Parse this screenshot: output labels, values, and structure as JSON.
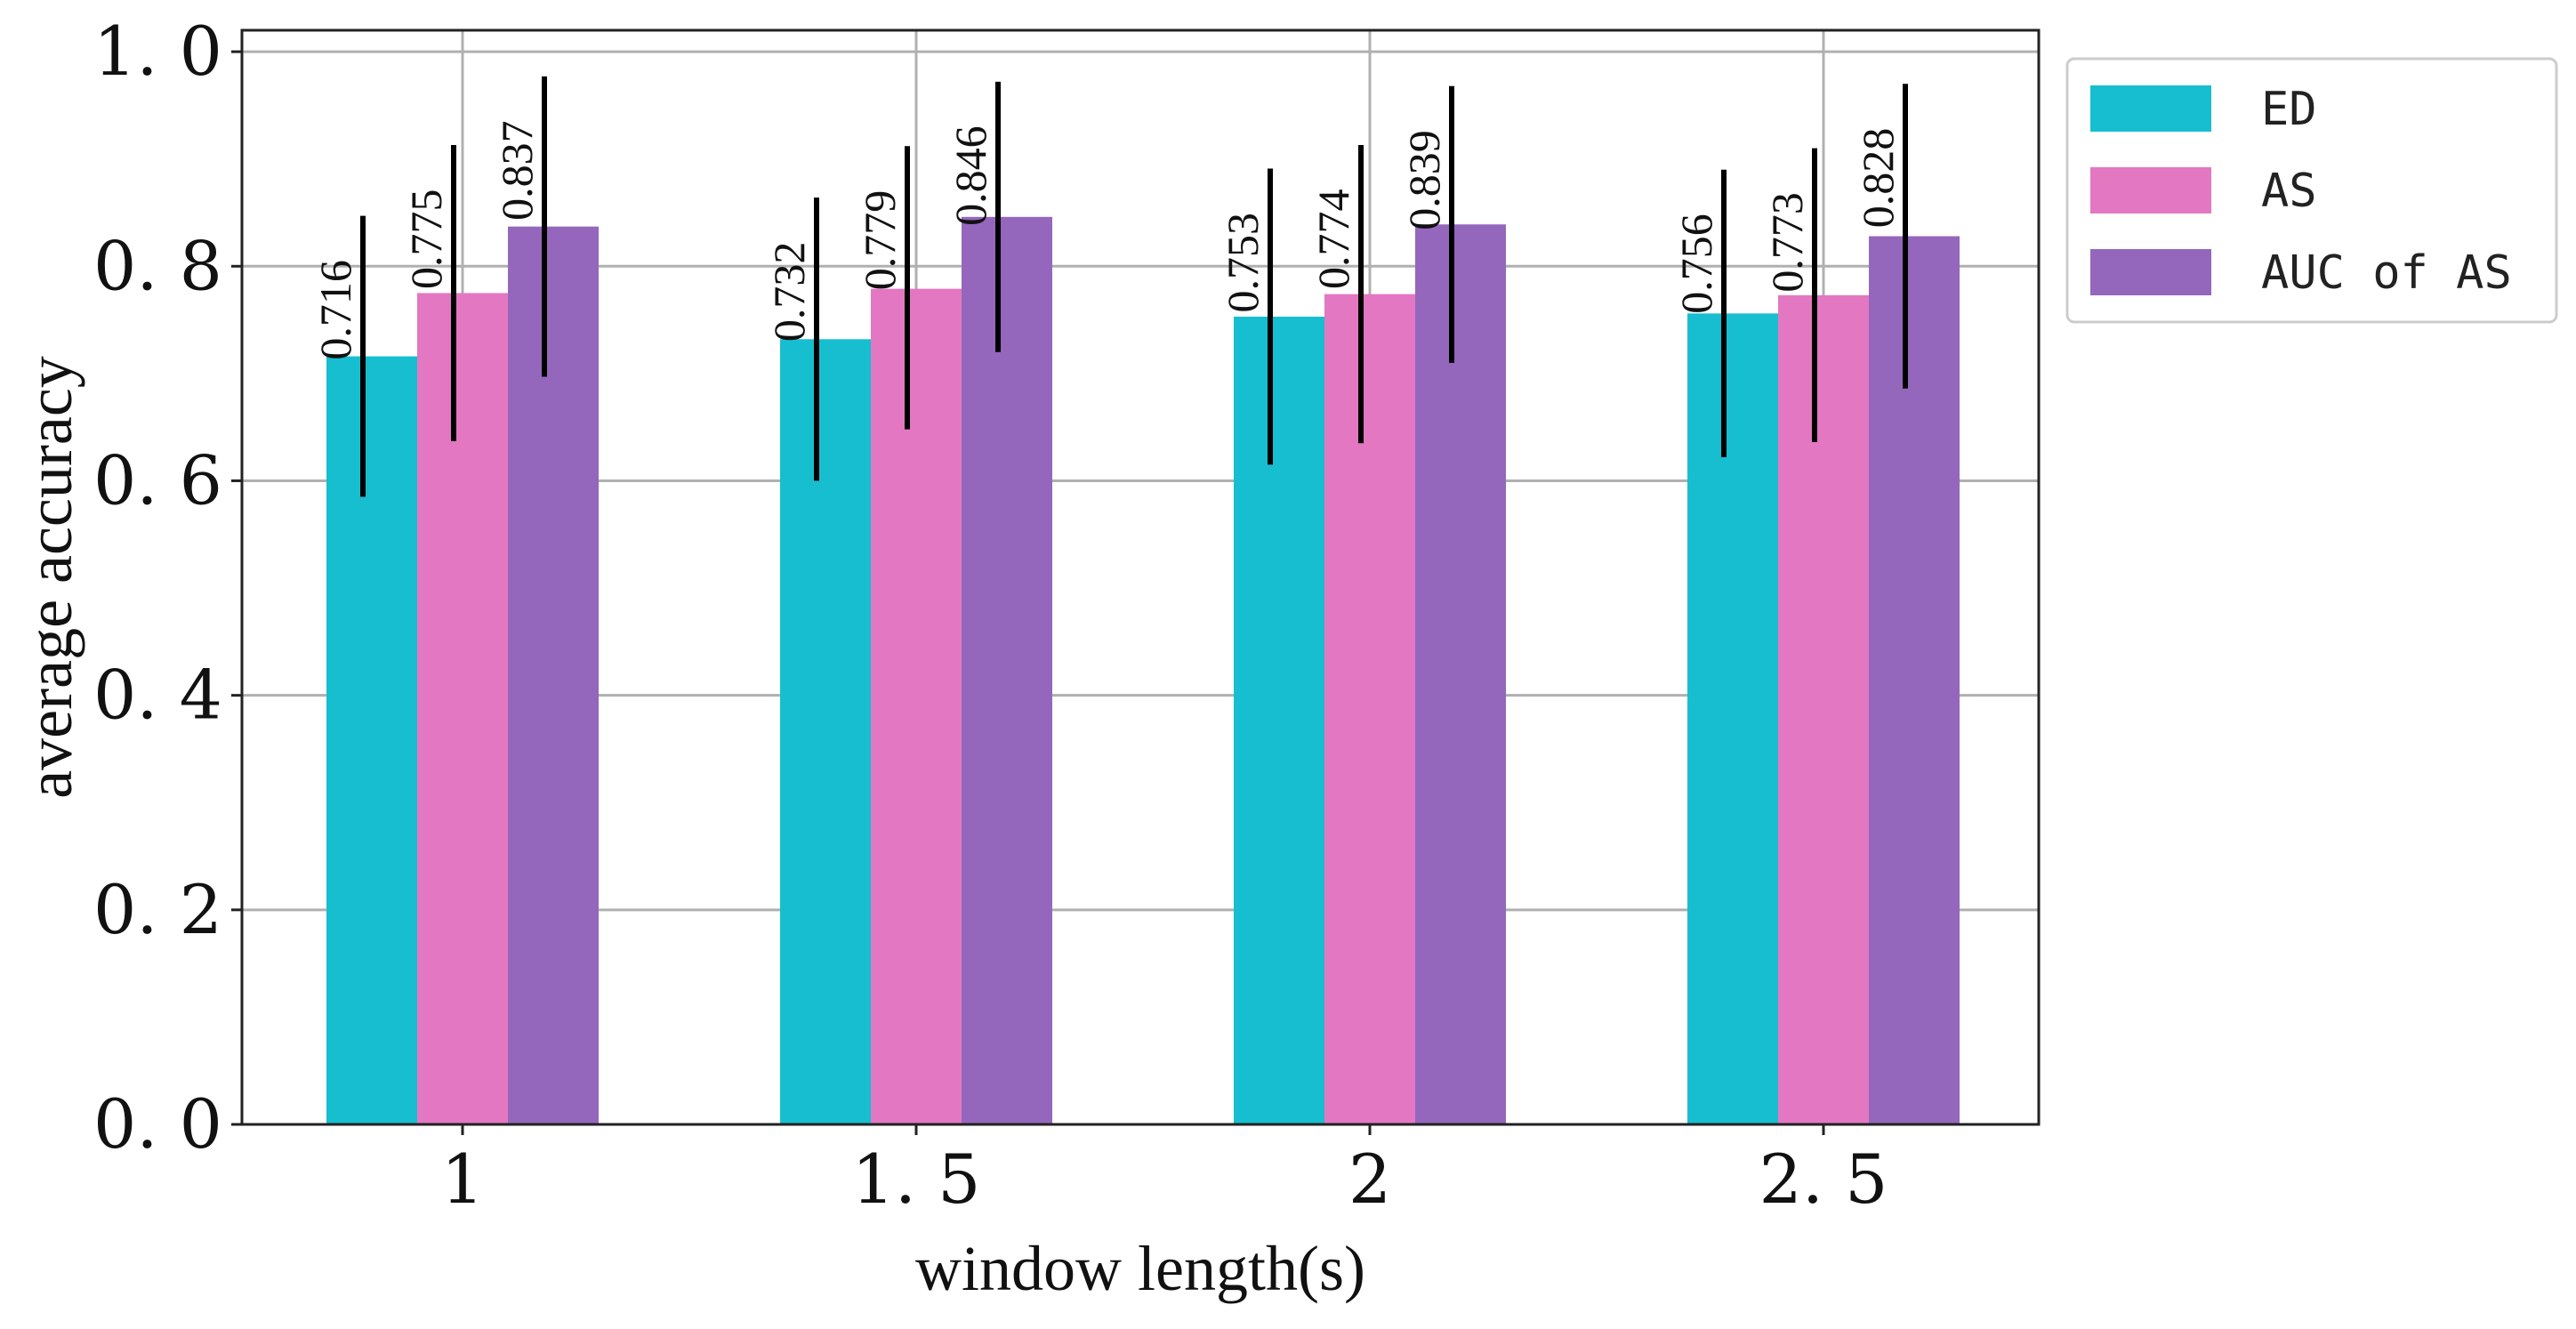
{
  "chart_data": {
    "type": "bar",
    "title": "",
    "xlabel": "window length(s)",
    "ylabel": "average accuracy",
    "categories": [
      "1",
      "1.5",
      "2",
      "2.5"
    ],
    "category_tick_labels": [
      "1",
      "1. 5",
      "2",
      "2. 5"
    ],
    "ylim": [
      0,
      1.02
    ],
    "yticks": [
      0.0,
      0.2,
      0.4,
      0.6,
      0.8,
      1.0
    ],
    "ytick_labels": [
      "0. 0",
      "0. 2",
      "0. 4",
      "0. 6",
      "0. 8",
      "1. 0"
    ],
    "grid": true,
    "legend_position": "outside-top-right",
    "series": [
      {
        "name": "ED",
        "color": "#17becf",
        "values": [
          0.716,
          0.732,
          0.753,
          0.756
        ],
        "value_labels": [
          "0.716",
          "0.732",
          "0.753",
          "0.756"
        ],
        "err_low": [
          0.585,
          0.6,
          0.615,
          0.622
        ],
        "err_high": [
          0.847,
          0.864,
          0.891,
          0.89
        ]
      },
      {
        "name": "AS",
        "color": "#e377c2",
        "values": [
          0.775,
          0.779,
          0.774,
          0.773
        ],
        "value_labels": [
          "0.775",
          "0.779",
          "0.774",
          "0.773"
        ],
        "err_low": [
          0.637,
          0.648,
          0.635,
          0.636
        ],
        "err_high": [
          0.913,
          0.912,
          0.913,
          0.91
        ]
      },
      {
        "name": "AUC of AS",
        "color": "#9467bd",
        "values": [
          0.837,
          0.846,
          0.839,
          0.828
        ],
        "value_labels": [
          "0.837",
          "0.846",
          "0.839",
          "0.828"
        ],
        "err_low": [
          0.697,
          0.72,
          0.71,
          0.686
        ],
        "err_high": [
          0.977,
          0.972,
          0.968,
          0.97
        ]
      }
    ]
  }
}
